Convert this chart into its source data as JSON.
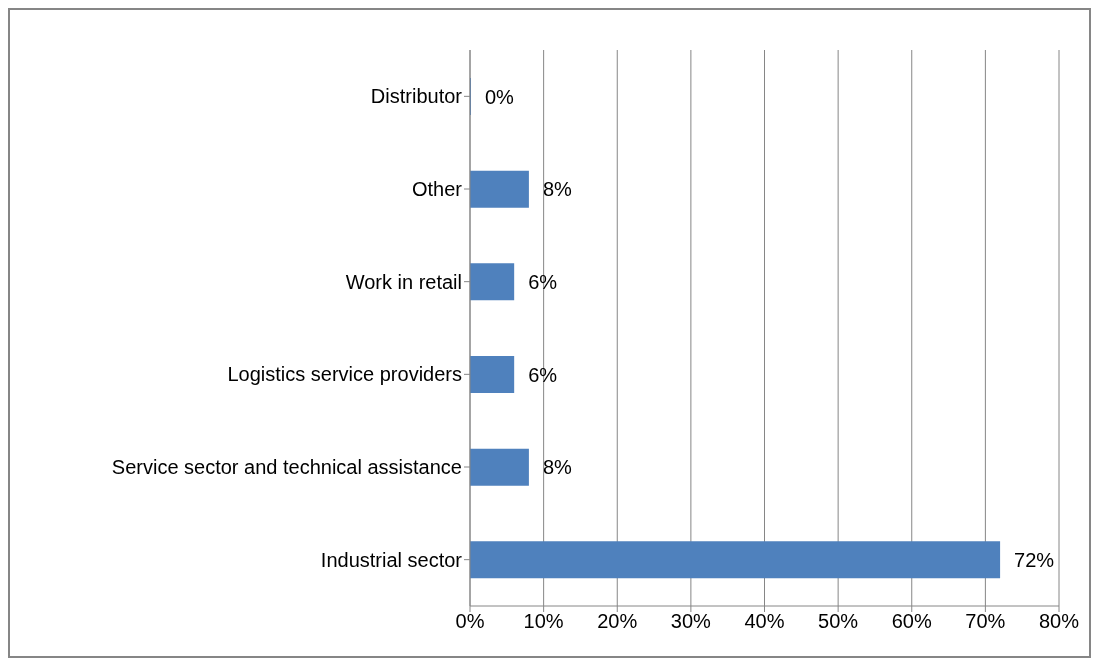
{
  "chart_data": {
    "type": "bar",
    "orientation": "horizontal",
    "categories": [
      "Distributor",
      "Other",
      "Work in retail",
      "Logistics service providers",
      "Service sector and technical assistance",
      "Industrial sector"
    ],
    "values": [
      0,
      8,
      6,
      6,
      8,
      72
    ],
    "value_labels": [
      "0%",
      "8%",
      "6%",
      "6%",
      "8%",
      "72%"
    ],
    "color": "#4f81bd",
    "xlim": [
      0,
      80
    ],
    "xticks": [
      {
        "value": 0,
        "label": "0%"
      },
      {
        "value": 10,
        "label": "10%"
      },
      {
        "value": 20,
        "label": "20%"
      },
      {
        "value": 30,
        "label": "30%"
      },
      {
        "value": 40,
        "label": "40%"
      },
      {
        "value": 50,
        "label": "50%"
      },
      {
        "value": 60,
        "label": "60%"
      },
      {
        "value": 70,
        "label": "70%"
      },
      {
        "value": 80,
        "label": "80%"
      }
    ],
    "grid": "x"
  }
}
